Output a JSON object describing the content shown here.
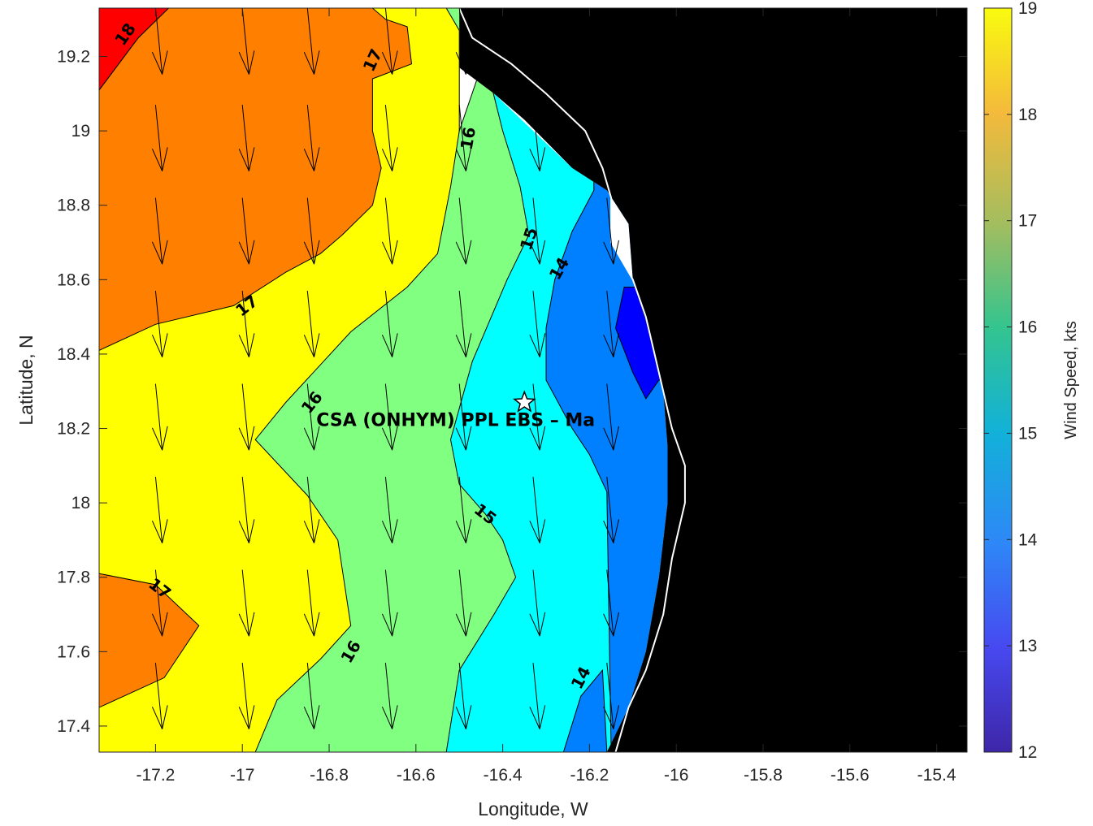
{
  "map": {
    "xlabel": "Longitude, W",
    "ylabel": "Latitude, N",
    "xlim": [
      -17.33,
      -15.33
    ],
    "ylim": [
      17.33,
      19.33
    ],
    "x_ticks": [
      -17.2,
      -17,
      -16.8,
      -16.6,
      -16.4,
      -16.2,
      -16,
      -15.8,
      -15.6,
      -15.4
    ],
    "x_tick_labels": [
      "-17.2",
      "-17",
      "-16.8",
      "-16.6",
      "-16.4",
      "-16.2",
      "-16",
      "-15.8",
      "-15.6",
      "-15.4"
    ],
    "y_ticks": [
      17.4,
      17.6,
      17.8,
      18,
      18.2,
      18.4,
      18.6,
      18.8,
      19,
      19.2
    ],
    "y_tick_labels": [
      "17.4",
      "17.6",
      "17.8",
      "18",
      "18.2",
      "18.4",
      "18.6",
      "18.8",
      "19",
      "19.2"
    ],
    "site": {
      "label": "CSA (ONHYM) PPL EBS  – Ma",
      "lon": -16.35,
      "lat": 18.27
    },
    "land_color": "#000000",
    "contour_labels": [
      {
        "text": "18",
        "lon": -17.27,
        "lat": 19.26,
        "angle": -55
      },
      {
        "text": "17",
        "lon": -16.7,
        "lat": 19.19,
        "angle": -65
      },
      {
        "text": "16",
        "lon": -16.48,
        "lat": 18.98,
        "angle": -80
      },
      {
        "text": "15",
        "lon": -16.34,
        "lat": 18.71,
        "angle": -72
      },
      {
        "text": "14",
        "lon": -16.27,
        "lat": 18.63,
        "angle": -60
      },
      {
        "text": "17",
        "lon": -16.99,
        "lat": 18.53,
        "angle": -38
      },
      {
        "text": "16",
        "lon": -16.84,
        "lat": 18.27,
        "angle": -52
      },
      {
        "text": "15",
        "lon": -16.44,
        "lat": 17.97,
        "angle": 38
      },
      {
        "text": "17",
        "lon": -17.19,
        "lat": 17.77,
        "angle": 38
      },
      {
        "text": "16",
        "lon": -16.75,
        "lat": 17.6,
        "angle": -60
      },
      {
        "text": "14",
        "lon": -16.22,
        "lat": 17.53,
        "angle": -62
      }
    ],
    "regions": [
      {
        "level": 19,
        "color": "#ffff00",
        "polygon": [
          [
            -17.33,
            17.33
          ],
          [
            -16.5,
            17.33
          ],
          [
            -16.5,
            19.33
          ],
          [
            -17.33,
            19.33
          ]
        ]
      },
      {
        "level": 18,
        "color": "#ff8000",
        "polygon": [
          [
            -17.33,
            19.11
          ],
          [
            -17.24,
            19.25
          ],
          [
            -17.17,
            19.33
          ],
          [
            -16.7,
            19.33
          ],
          [
            -16.67,
            19.3
          ],
          [
            -16.62,
            19.28
          ],
          [
            -16.61,
            19.18
          ],
          [
            -16.7,
            19.14
          ],
          [
            -16.7,
            19.0
          ],
          [
            -16.68,
            18.9
          ],
          [
            -16.7,
            18.8
          ],
          [
            -16.77,
            18.72
          ],
          [
            -16.82,
            18.67
          ],
          [
            -16.9,
            18.62
          ],
          [
            -17.02,
            18.53
          ],
          [
            -17.2,
            18.48
          ],
          [
            -17.33,
            18.41
          ]
        ]
      },
      {
        "level": 18,
        "color": "#ff8000",
        "polygon": [
          [
            -17.33,
            17.81
          ],
          [
            -17.2,
            17.78
          ],
          [
            -17.1,
            17.67
          ],
          [
            -17.18,
            17.53
          ],
          [
            -17.33,
            17.45
          ]
        ]
      },
      {
        "level": 19,
        "color": "#ff0000",
        "polygon": [
          [
            -17.33,
            19.11
          ],
          [
            -17.24,
            19.25
          ],
          [
            -17.17,
            19.33
          ],
          [
            -17.33,
            19.33
          ]
        ]
      },
      {
        "level": 16,
        "color": "#80ff80",
        "polygon": [
          [
            -16.53,
            19.33
          ],
          [
            -16.45,
            19.17
          ],
          [
            -16.5,
            19.0
          ],
          [
            -16.52,
            18.85
          ],
          [
            -16.55,
            18.67
          ],
          [
            -16.62,
            18.58
          ],
          [
            -16.75,
            18.46
          ],
          [
            -16.9,
            18.27
          ],
          [
            -16.97,
            18.17
          ],
          [
            -16.85,
            18.02
          ],
          [
            -16.78,
            17.9
          ],
          [
            -16.75,
            17.67
          ],
          [
            -16.82,
            17.58
          ],
          [
            -16.92,
            17.47
          ],
          [
            -16.97,
            17.33
          ],
          [
            -15.33,
            17.33
          ],
          [
            -15.33,
            19.33
          ]
        ]
      },
      {
        "level": 15,
        "color": "#00ffff",
        "polygon": [
          [
            -16.43,
            19.14
          ],
          [
            -16.4,
            19.0
          ],
          [
            -16.36,
            18.85
          ],
          [
            -16.34,
            18.72
          ],
          [
            -16.39,
            18.6
          ],
          [
            -16.47,
            18.38
          ],
          [
            -16.52,
            18.17
          ],
          [
            -16.5,
            18.05
          ],
          [
            -16.44,
            17.97
          ],
          [
            -16.4,
            17.9
          ],
          [
            -16.37,
            17.8
          ],
          [
            -16.42,
            17.7
          ],
          [
            -16.5,
            17.55
          ],
          [
            -16.53,
            17.33
          ],
          [
            -15.33,
            17.33
          ],
          [
            -15.33,
            19.33
          ],
          [
            -16.43,
            19.33
          ]
        ]
      },
      {
        "level": 14,
        "color": "#0080ff",
        "polygon": [
          [
            -16.19,
            18.84
          ],
          [
            -16.24,
            18.73
          ],
          [
            -16.28,
            18.6
          ],
          [
            -16.3,
            18.47
          ],
          [
            -16.3,
            18.33
          ],
          [
            -16.24,
            18.2
          ],
          [
            -16.2,
            18.13
          ],
          [
            -16.16,
            18.03
          ],
          [
            -16.15,
            17.33
          ],
          [
            -16.26,
            17.33
          ],
          [
            -16.22,
            17.48
          ],
          [
            -16.17,
            17.55
          ],
          [
            -16.16,
            17.33
          ],
          [
            -15.33,
            17.33
          ],
          [
            -15.33,
            19.33
          ],
          [
            -16.19,
            19.33
          ]
        ]
      },
      {
        "level": 13,
        "color": "#0000ff",
        "polygon": [
          [
            -16.12,
            18.58
          ],
          [
            -16.14,
            18.47
          ],
          [
            -16.1,
            18.35
          ],
          [
            -16.07,
            18.28
          ],
          [
            -16.04,
            18.33
          ],
          [
            -15.33,
            18.33
          ],
          [
            -15.33,
            18.58
          ]
        ]
      }
    ],
    "land": [
      [
        -16.5,
        19.33
      ],
      [
        -16.5,
        19.17
      ],
      [
        -16.42,
        19.1
      ],
      [
        -16.35,
        19.03
      ],
      [
        -16.24,
        18.9
      ],
      [
        -16.16,
        18.84
      ],
      [
        -16.11,
        18.75
      ],
      [
        -16.1,
        18.6
      ],
      [
        -16.06,
        18.45
      ],
      [
        -16.03,
        18.3
      ],
      [
        -16.02,
        18.15
      ],
      [
        -16.02,
        18.0
      ],
      [
        -16.04,
        17.8
      ],
      [
        -16.07,
        17.6
      ],
      [
        -16.11,
        17.45
      ],
      [
        -16.16,
        17.33
      ],
      [
        -15.33,
        17.33
      ],
      [
        -15.33,
        19.33
      ]
    ],
    "coast": [
      [
        -16.5,
        19.33
      ],
      [
        -16.47,
        19.25
      ],
      [
        -16.38,
        19.18
      ],
      [
        -16.3,
        19.1
      ],
      [
        -16.21,
        19.0
      ],
      [
        -16.17,
        18.9
      ],
      [
        -16.15,
        18.82
      ],
      [
        -16.15,
        18.7
      ],
      [
        -16.1,
        18.6
      ],
      [
        -16.07,
        18.5
      ],
      [
        -16.05,
        18.4
      ],
      [
        -16.03,
        18.3
      ],
      [
        -16.01,
        18.2
      ],
      [
        -15.98,
        18.1
      ],
      [
        -15.98,
        18.0
      ],
      [
        -16.01,
        17.85
      ],
      [
        -16.03,
        17.7
      ],
      [
        -16.07,
        17.55
      ],
      [
        -16.11,
        17.45
      ],
      [
        -16.14,
        17.33
      ]
    ],
    "white_gaps": [
      [
        [
          -16.5,
          19.33
        ],
        [
          -16.5,
          19.17
        ],
        [
          -16.42,
          19.1
        ],
        [
          -16.24,
          18.9
        ],
        [
          -16.16,
          18.84
        ],
        [
          -16.13,
          18.84
        ],
        [
          -16.15,
          18.92
        ],
        [
          -16.2,
          19.0
        ],
        [
          -16.3,
          19.1
        ],
        [
          -16.4,
          19.18
        ],
        [
          -16.47,
          19.25
        ]
      ],
      [
        [
          -16.16,
          18.84
        ],
        [
          -16.11,
          18.75
        ],
        [
          -16.1,
          18.6
        ],
        [
          -16.06,
          18.45
        ],
        [
          -16.03,
          18.3
        ],
        [
          -16.02,
          18.15
        ],
        [
          -16.02,
          18.0
        ],
        [
          -16.04,
          17.8
        ],
        [
          -16.07,
          17.6
        ],
        [
          -16.11,
          17.45
        ],
        [
          -16.16,
          17.33
        ],
        [
          -16.14,
          17.33
        ],
        [
          -16.11,
          17.45
        ],
        [
          -16.07,
          17.55
        ],
        [
          -16.03,
          17.7
        ],
        [
          -16.01,
          17.85
        ],
        [
          -15.98,
          18.0
        ],
        [
          -15.98,
          18.1
        ],
        [
          -16.01,
          18.2
        ],
        [
          -16.03,
          18.3
        ],
        [
          -16.05,
          18.4
        ],
        [
          -16.07,
          18.5
        ],
        [
          -16.1,
          18.6
        ],
        [
          -16.15,
          18.7
        ],
        [
          -16.15,
          18.82
        ]
      ]
    ],
    "wind_arrows": {
      "lons": [
        -17.2,
        -17.0,
        -16.85,
        -16.67,
        -16.5,
        -16.33,
        -16.16
      ],
      "lats": [
        19.33,
        19.07,
        18.82,
        18.57,
        18.32,
        18.07,
        17.82,
        17.57
      ],
      "u": 0.1,
      "v": -1.0
    }
  },
  "colorbar": {
    "label": "Wind Speed, kts",
    "range": [
      12,
      19
    ],
    "ticks": [
      12,
      13,
      14,
      15,
      16,
      17,
      18,
      19
    ],
    "tick_labels": [
      "12",
      "13",
      "14",
      "15",
      "16",
      "17",
      "18",
      "19"
    ],
    "colormap": "parula"
  }
}
